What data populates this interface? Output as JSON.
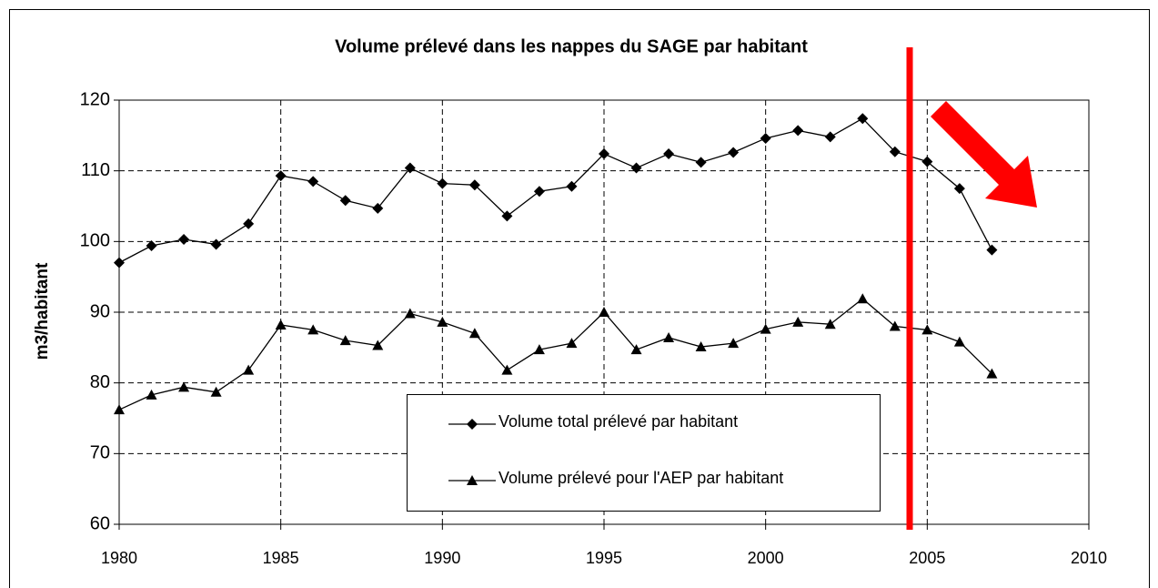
{
  "chart_data": {
    "type": "line",
    "title": "Volume prélevé dans les nappes du SAGE par habitant",
    "y_label": "m3/habitant",
    "x": [
      1980,
      1981,
      1982,
      1983,
      1984,
      1985,
      1986,
      1987,
      1988,
      1989,
      1990,
      1991,
      1992,
      1993,
      1994,
      1995,
      1996,
      1997,
      1998,
      1999,
      2000,
      2001,
      2002,
      2003,
      2004,
      2005,
      2006,
      2007
    ],
    "series": [
      {
        "name": "Volume total prélevé par habitant",
        "color": "#000000",
        "marker": "diamond",
        "values": [
          97,
          99.4,
          100.3,
          99.6,
          102.5,
          109.3,
          108.5,
          105.8,
          104.7,
          110.4,
          108.2,
          108,
          103.6,
          107.1,
          107.8,
          112.4,
          110.4,
          112.4,
          111.2,
          112.6,
          114.6,
          115.7,
          114.8,
          117.4,
          112.7,
          111.3,
          107.5,
          98.8
        ]
      },
      {
        "name": "Volume prélevé pour l'AEP par habitant",
        "color": "#000000",
        "marker": "triangle",
        "values": [
          76.2,
          78.3,
          79.4,
          78.7,
          81.8,
          88.2,
          87.5,
          86,
          85.3,
          89.8,
          88.6,
          87,
          81.8,
          84.7,
          85.6,
          90,
          84.7,
          86.4,
          85.1,
          85.6,
          87.6,
          88.6,
          88.3,
          91.9,
          88,
          87.5,
          85.8,
          81.3
        ]
      }
    ],
    "xlim": [
      1980,
      2010
    ],
    "xticks": [
      1980,
      1985,
      1990,
      1995,
      2000,
      2005,
      2010
    ],
    "ylim": [
      60,
      120
    ],
    "yticks": [
      60,
      70,
      80,
      90,
      100,
      110,
      120
    ],
    "grid": true
  }
}
